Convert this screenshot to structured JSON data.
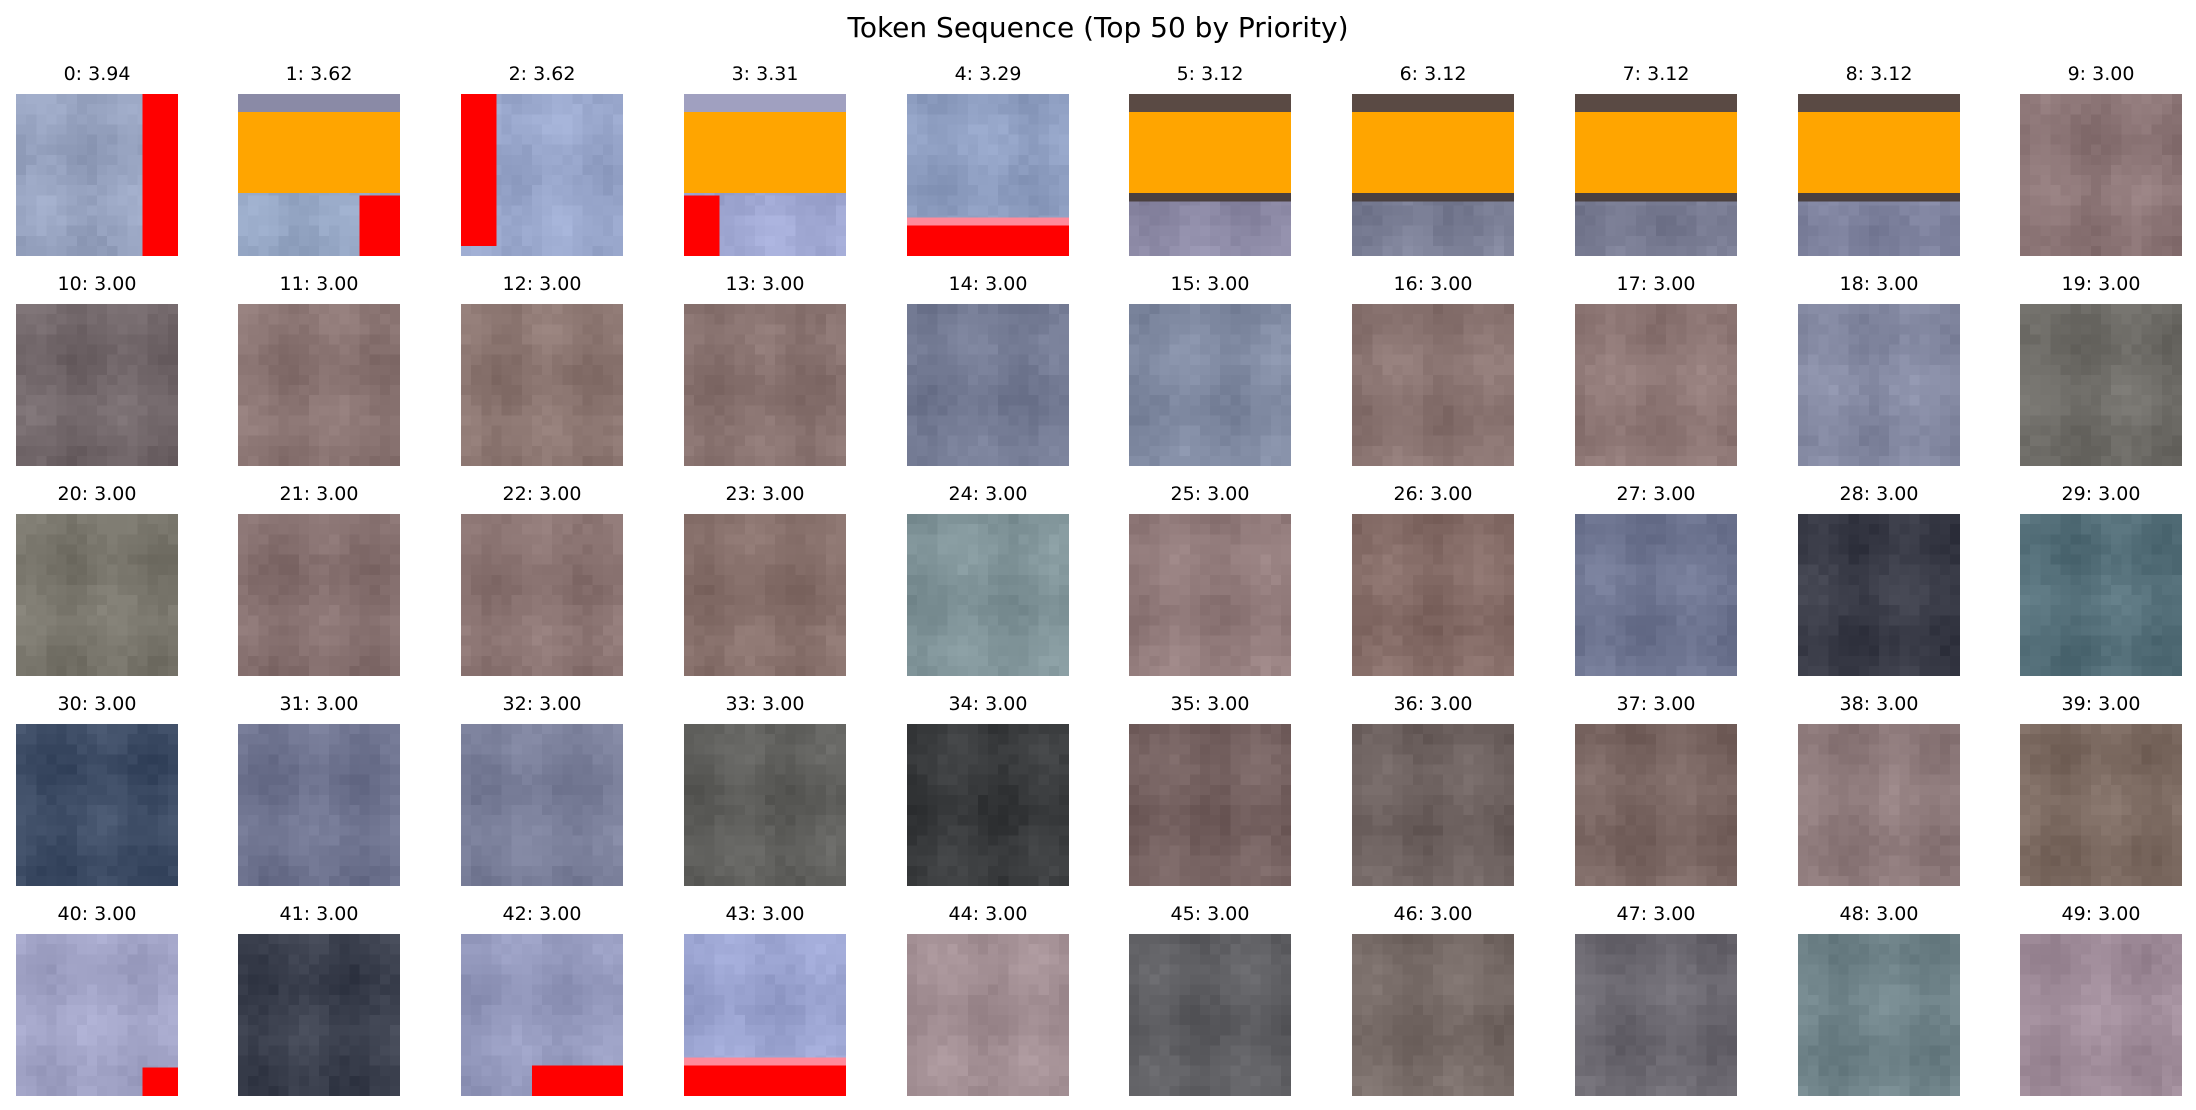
{
  "title": "Token Sequence (Top 50 by Priority)",
  "chart_data": {
    "type": "image-grid",
    "title": "Token Sequence (Top 50 by Priority)",
    "rows": 5,
    "cols": 10,
    "tokens": [
      {
        "index": 0,
        "priority": 3.94,
        "label": "0: 3.94",
        "patch": {
          "base": "#96a2bf",
          "overlay": "red-right",
          "accent": "#ff0000"
        }
      },
      {
        "index": 1,
        "priority": 3.62,
        "label": "1: 3.62",
        "patch": {
          "base": "#93a4c2",
          "overlay": "orange-band-red-corner",
          "accent": "#ffa500"
        }
      },
      {
        "index": 2,
        "priority": 3.62,
        "label": "2: 3.62",
        "patch": {
          "base": "#99a7cc",
          "overlay": "red-left",
          "accent": "#ff0000"
        }
      },
      {
        "index": 3,
        "priority": 3.31,
        "label": "3: 3.31",
        "patch": {
          "base": "#9fa7d2",
          "overlay": "orange-band-red-left-corner",
          "accent": "#ffa500"
        }
      },
      {
        "index": 4,
        "priority": 3.29,
        "label": "4: 3.29",
        "patch": {
          "base": "#8f9fc2",
          "overlay": "red-bottom",
          "accent": "#ff0000"
        }
      },
      {
        "index": 5,
        "priority": 3.12,
        "label": "5: 3.12",
        "patch": {
          "base": "#8d8aa6",
          "overlay": "orange-band",
          "accent": "#ffa500"
        }
      },
      {
        "index": 6,
        "priority": 3.12,
        "label": "6: 3.12",
        "patch": {
          "base": "#7c8097",
          "overlay": "orange-band",
          "accent": "#ffa500"
        }
      },
      {
        "index": 7,
        "priority": 3.12,
        "label": "7: 3.12",
        "patch": {
          "base": "#7a7d94",
          "overlay": "orange-band",
          "accent": "#ffa500"
        }
      },
      {
        "index": 8,
        "priority": 3.12,
        "label": "8: 3.12",
        "patch": {
          "base": "#8084a0",
          "overlay": "orange-band",
          "accent": "#ffa500"
        }
      },
      {
        "index": 9,
        "priority": 3.0,
        "label": "9: 3.00",
        "patch": {
          "base": "#8d7677",
          "overlay": "none"
        }
      },
      {
        "index": 10,
        "priority": 3.0,
        "label": "10: 3.00",
        "patch": {
          "base": "#72676a",
          "overlay": "none"
        }
      },
      {
        "index": 11,
        "priority": 3.0,
        "label": "11: 3.00",
        "patch": {
          "base": "#8a7472",
          "overlay": "none"
        }
      },
      {
        "index": 12,
        "priority": 3.0,
        "label": "12: 3.00",
        "patch": {
          "base": "#8b7570",
          "overlay": "none"
        }
      },
      {
        "index": 13,
        "priority": 3.0,
        "label": "13: 3.00",
        "patch": {
          "base": "#87716e",
          "overlay": "none"
        }
      },
      {
        "index": 14,
        "priority": 3.0,
        "label": "14: 3.00",
        "patch": {
          "base": "#747b94",
          "overlay": "none"
        }
      },
      {
        "index": 15,
        "priority": 3.0,
        "label": "15: 3.00",
        "patch": {
          "base": "#808aa2",
          "overlay": "none"
        }
      },
      {
        "index": 16,
        "priority": 3.0,
        "label": "16: 3.00",
        "patch": {
          "base": "#8a7471",
          "overlay": "none"
        }
      },
      {
        "index": 17,
        "priority": 3.0,
        "label": "17: 3.00",
        "patch": {
          "base": "#8f7876",
          "overlay": "none"
        }
      },
      {
        "index": 18,
        "priority": 3.0,
        "label": "18: 3.00",
        "patch": {
          "base": "#858aa3",
          "overlay": "none"
        }
      },
      {
        "index": 19,
        "priority": 3.0,
        "label": "19: 3.00",
        "patch": {
          "base": "#6f6d68",
          "overlay": "none"
        }
      },
      {
        "index": 20,
        "priority": 3.0,
        "label": "20: 3.00",
        "patch": {
          "base": "#7a776d",
          "overlay": "none"
        }
      },
      {
        "index": 21,
        "priority": 3.0,
        "label": "21: 3.00",
        "patch": {
          "base": "#86706f",
          "overlay": "none"
        }
      },
      {
        "index": 22,
        "priority": 3.0,
        "label": "22: 3.00",
        "patch": {
          "base": "#8b7472",
          "overlay": "none"
        }
      },
      {
        "index": 23,
        "priority": 3.0,
        "label": "23: 3.00",
        "patch": {
          "base": "#866f6a",
          "overlay": "none"
        }
      },
      {
        "index": 24,
        "priority": 3.0,
        "label": "24: 3.00",
        "patch": {
          "base": "#7f9398",
          "overlay": "none"
        }
      },
      {
        "index": 25,
        "priority": 3.0,
        "label": "25: 3.00",
        "patch": {
          "base": "#927b7b",
          "overlay": "none"
        }
      },
      {
        "index": 26,
        "priority": 3.0,
        "label": "26: 3.00",
        "patch": {
          "base": "#846b66",
          "overlay": "none"
        }
      },
      {
        "index": 27,
        "priority": 3.0,
        "label": "27: 3.00",
        "patch": {
          "base": "#6e7591",
          "overlay": "none"
        }
      },
      {
        "index": 28,
        "priority": 3.0,
        "label": "28: 3.00",
        "patch": {
          "base": "#3a3c48",
          "overlay": "none"
        }
      },
      {
        "index": 29,
        "priority": 3.0,
        "label": "29: 3.00",
        "patch": {
          "base": "#55707a",
          "overlay": "none"
        }
      },
      {
        "index": 30,
        "priority": 3.0,
        "label": "30: 3.00",
        "patch": {
          "base": "#3e4d66",
          "overlay": "none"
        }
      },
      {
        "index": 31,
        "priority": 3.0,
        "label": "31: 3.00",
        "patch": {
          "base": "#6f7490",
          "overlay": "none"
        }
      },
      {
        "index": 32,
        "priority": 3.0,
        "label": "32: 3.00",
        "patch": {
          "base": "#7a7f9a",
          "overlay": "none"
        }
      },
      {
        "index": 33,
        "priority": 3.0,
        "label": "33: 3.00",
        "patch": {
          "base": "#5f5f5c",
          "overlay": "none"
        }
      },
      {
        "index": 34,
        "priority": 3.0,
        "label": "34: 3.00",
        "patch": {
          "base": "#383a3c",
          "overlay": "none"
        }
      },
      {
        "index": 35,
        "priority": 3.0,
        "label": "35: 3.00",
        "patch": {
          "base": "#74605f",
          "overlay": "none"
        }
      },
      {
        "index": 36,
        "priority": 3.0,
        "label": "36: 3.00",
        "patch": {
          "base": "#6e6260",
          "overlay": "none"
        }
      },
      {
        "index": 37,
        "priority": 3.0,
        "label": "37: 3.00",
        "patch": {
          "base": "#7a6662",
          "overlay": "none"
        }
      },
      {
        "index": 38,
        "priority": 3.0,
        "label": "38: 3.00",
        "patch": {
          "base": "#8f7b7c",
          "overlay": "none"
        }
      },
      {
        "index": 39,
        "priority": 3.0,
        "label": "39: 3.00",
        "patch": {
          "base": "#7d6b62",
          "overlay": "none"
        }
      },
      {
        "index": 40,
        "priority": 3.0,
        "label": "40: 3.00",
        "patch": {
          "base": "#a3a5c8",
          "overlay": "red-bottom-right-corner",
          "accent": "#ff0000"
        }
      },
      {
        "index": 41,
        "priority": 3.0,
        "label": "41: 3.00",
        "patch": {
          "base": "#3b404e",
          "overlay": "none"
        }
      },
      {
        "index": 42,
        "priority": 3.0,
        "label": "42: 3.00",
        "patch": {
          "base": "#9499bd",
          "overlay": "red-bottom-right",
          "accent": "#ff0000"
        }
      },
      {
        "index": 43,
        "priority": 3.0,
        "label": "43: 3.00",
        "patch": {
          "base": "#9aa3d0",
          "overlay": "red-bottom",
          "accent": "#ff0000"
        }
      },
      {
        "index": 44,
        "priority": 3.0,
        "label": "44: 3.00",
        "patch": {
          "base": "#a18d92",
          "overlay": "none"
        }
      },
      {
        "index": 45,
        "priority": 3.0,
        "label": "45: 3.00",
        "patch": {
          "base": "#5e5e62",
          "overlay": "none"
        }
      },
      {
        "index": 46,
        "priority": 3.0,
        "label": "46: 3.00",
        "patch": {
          "base": "#766a66",
          "overlay": "none"
        }
      },
      {
        "index": 47,
        "priority": 3.0,
        "label": "47: 3.00",
        "patch": {
          "base": "#6b6870",
          "overlay": "none"
        }
      },
      {
        "index": 48,
        "priority": 3.0,
        "label": "48: 3.00",
        "patch": {
          "base": "#6f8389",
          "overlay": "none"
        }
      },
      {
        "index": 49,
        "priority": 3.0,
        "label": "49: 3.00",
        "patch": {
          "base": "#a08c9a",
          "overlay": "none"
        }
      }
    ]
  }
}
